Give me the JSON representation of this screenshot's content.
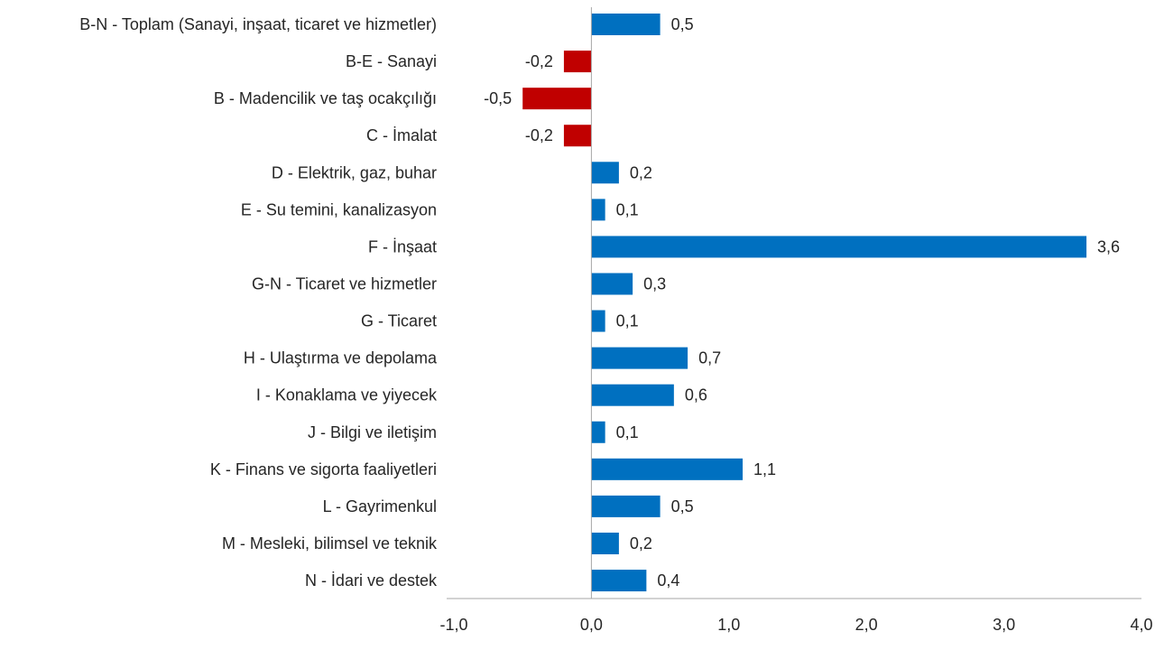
{
  "chart_data": {
    "type": "bar",
    "orientation": "horizontal",
    "title": "",
    "xlabel": "",
    "ylabel": "",
    "categories": [
      "B-N - Toplam (Sanayi, inşaat, ticaret ve hizmetler)",
      "B-E - Sanayi",
      "B - Madencilik ve taş ocakçılığı",
      "C - İmalat",
      "D - Elektrik, gaz, buhar",
      "E - Su temini, kanalizasyon",
      "F - İnşaat",
      "G-N - Ticaret ve hizmetler",
      "G - Ticaret",
      "H - Ulaştırma ve depolama",
      "I - Konaklama ve yiyecek",
      "J - Bilgi ve iletişim",
      "K - Finans ve sigorta faaliyetleri",
      "L - Gayrimenkul",
      "M - Mesleki, bilimsel ve teknik",
      "N - İdari ve destek"
    ],
    "values": [
      0.5,
      -0.2,
      -0.5,
      -0.2,
      0.2,
      0.1,
      3.6,
      0.3,
      0.1,
      0.7,
      0.6,
      0.1,
      1.1,
      0.5,
      0.2,
      0.4
    ],
    "value_labels": [
      "0,5",
      "-0,2",
      "-0,5",
      "-0,2",
      "0,2",
      "0,1",
      "3,6",
      "0,3",
      "0,1",
      "0,7",
      "0,6",
      "0,1",
      "1,1",
      "0,5",
      "0,2",
      "0,4"
    ],
    "xlim": [
      -1.0,
      4.0
    ],
    "xticks": [
      -1,
      0,
      1,
      2,
      3,
      4
    ],
    "xtick_labels": [
      "-1,0",
      "0,0",
      "1,0",
      "2,0",
      "3,0",
      "4,0"
    ],
    "grid": false,
    "legend": "none",
    "colors": {
      "positive": "#0070C0",
      "negative": "#C00000",
      "axis": "#A6A6A6"
    }
  }
}
